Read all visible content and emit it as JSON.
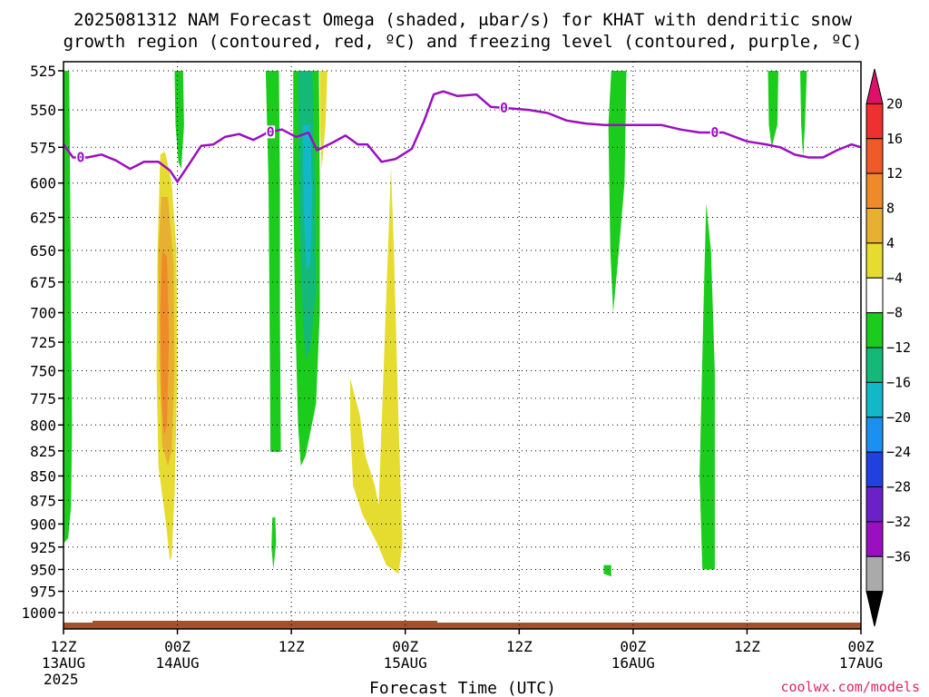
{
  "title": {
    "line1": "2025081312 NAM Forecast Omega (shaded, μbar/s) for KHAT with dendritic snow",
    "line2": "growth region (contoured, red, ºC) and freezing level (contoured, purple, ºC)"
  },
  "credit": "coolwx.com/models",
  "chart_data": {
    "type": "heatmap",
    "xlabel": "Forecast Time (UTC)",
    "ylabel": "",
    "x_unit": "hours after 2025-08-13 12Z",
    "xlim": [
      0,
      84
    ],
    "ylim": [
      1000,
      525
    ],
    "y_scale": "log-pressure",
    "grid": true,
    "y_ticks": [
      525,
      550,
      575,
      600,
      625,
      650,
      675,
      700,
      725,
      750,
      775,
      800,
      825,
      850,
      875,
      900,
      925,
      950,
      975,
      1000
    ],
    "x_ticks": [
      {
        "x": 0,
        "line1": "12Z",
        "line2": "13AUG",
        "line3": "2025"
      },
      {
        "x": 12,
        "line1": "00Z",
        "line2": "14AUG",
        "line3": ""
      },
      {
        "x": 24,
        "line1": "12Z",
        "line2": "",
        "line3": ""
      },
      {
        "x": 36,
        "line1": "00Z",
        "line2": "15AUG",
        "line3": ""
      },
      {
        "x": 48,
        "line1": "12Z",
        "line2": "",
        "line3": ""
      },
      {
        "x": 60,
        "line1": "00Z",
        "line2": "16AUG",
        "line3": ""
      },
      {
        "x": 72,
        "line1": "12Z",
        "line2": "",
        "line3": ""
      },
      {
        "x": 84,
        "line1": "00Z",
        "line2": "17AUG",
        "line3": ""
      }
    ],
    "colorbar": {
      "labels": [
        "20",
        "16",
        "12",
        "8",
        "4",
        "−4",
        "−8",
        "−12",
        "−16",
        "−20",
        "−24",
        "−28",
        "−32",
        "−36"
      ],
      "colors": [
        "#e0106a",
        "#ee3030",
        "#f05a28",
        "#ee8a2a",
        "#e8b030",
        "#e6dc30",
        "#ffffff",
        "#1ccc1c",
        "#14b878",
        "#12b8c8",
        "#1a90f0",
        "#2040e0",
        "#6a22c8",
        "#9a10c0",
        "#aaaaaa",
        "#000000"
      ]
    },
    "omega_regions": [
      {
        "color": "#1ccc1c",
        "polygon": [
          [
            0.0,
            525
          ],
          [
            0.6,
            525
          ],
          [
            0.7,
            600
          ],
          [
            0.8,
            700
          ],
          [
            0.9,
            800
          ],
          [
            0.8,
            880
          ],
          [
            0.5,
            915
          ],
          [
            0.1,
            920
          ],
          [
            0.0,
            900
          ]
        ]
      },
      {
        "color": "#1ccc1c",
        "polygon": [
          [
            11.7,
            525
          ],
          [
            12.6,
            525
          ],
          [
            12.7,
            560
          ],
          [
            12.4,
            590
          ],
          [
            12.1,
            585
          ],
          [
            11.8,
            560
          ]
        ]
      },
      {
        "color": "#e6dc30",
        "polygon": [
          [
            10.2,
            580
          ],
          [
            10.7,
            578
          ],
          [
            11.4,
            600
          ],
          [
            11.9,
            650
          ],
          [
            12.0,
            750
          ],
          [
            11.7,
            870
          ],
          [
            11.4,
            935
          ],
          [
            11.2,
            940
          ],
          [
            10.8,
            900
          ],
          [
            10.0,
            840
          ],
          [
            9.8,
            750
          ],
          [
            9.9,
            650
          ]
        ]
      },
      {
        "color": "#e8b030",
        "polygon": [
          [
            10.3,
            610
          ],
          [
            11.0,
            610
          ],
          [
            11.6,
            660
          ],
          [
            11.7,
            750
          ],
          [
            11.4,
            825
          ],
          [
            11.0,
            840
          ],
          [
            10.4,
            820
          ],
          [
            10.1,
            740
          ],
          [
            10.0,
            650
          ]
        ]
      },
      {
        "color": "#ee8a2a",
        "polygon": [
          [
            10.4,
            650
          ],
          [
            10.9,
            655
          ],
          [
            11.1,
            720
          ],
          [
            10.9,
            800
          ],
          [
            10.6,
            810
          ],
          [
            10.3,
            770
          ],
          [
            10.2,
            700
          ]
        ]
      },
      {
        "color": "#1ccc1c",
        "polygon": [
          [
            21.3,
            525
          ],
          [
            22.7,
            525
          ],
          [
            22.8,
            600
          ],
          [
            22.8,
            700
          ],
          [
            22.9,
            826
          ],
          [
            21.8,
            826
          ],
          [
            21.7,
            700
          ],
          [
            21.6,
            600
          ]
        ]
      },
      {
        "color": "#1ccc1c",
        "polygon": [
          [
            22.0,
            893
          ],
          [
            22.3,
            893
          ],
          [
            22.4,
            920
          ],
          [
            22.1,
            950
          ],
          [
            21.9,
            925
          ]
        ]
      },
      {
        "color": "#1ccc1c",
        "polygon": [
          [
            24.2,
            525
          ],
          [
            26.9,
            525
          ],
          [
            27.0,
            600
          ],
          [
            27.0,
            700
          ],
          [
            26.6,
            780
          ],
          [
            25.5,
            830
          ],
          [
            25.0,
            840
          ],
          [
            24.7,
            800
          ],
          [
            24.4,
            700
          ],
          [
            24.2,
            600
          ]
        ]
      },
      {
        "color": "#14b878",
        "polygon": [
          [
            24.7,
            525
          ],
          [
            26.2,
            525
          ],
          [
            26.5,
            600
          ],
          [
            26.6,
            680
          ],
          [
            26.0,
            730
          ],
          [
            25.5,
            740
          ],
          [
            25.1,
            690
          ],
          [
            24.8,
            620
          ]
        ]
      },
      {
        "color": "#12b8c8",
        "polygon": [
          [
            25.2,
            560
          ],
          [
            26.0,
            560
          ],
          [
            26.2,
            610
          ],
          [
            26.0,
            660
          ],
          [
            25.6,
            665
          ],
          [
            25.3,
            620
          ]
        ]
      },
      {
        "color": "#e6dc30",
        "polygon": [
          [
            27.0,
            525
          ],
          [
            27.8,
            525
          ],
          [
            27.6,
            560
          ],
          [
            27.2,
            590
          ],
          [
            27.0,
            560
          ]
        ]
      },
      {
        "color": "#e6dc30",
        "polygon": [
          [
            30.2,
            757
          ],
          [
            31.2,
            790
          ],
          [
            31.8,
            830
          ],
          [
            32.8,
            860
          ],
          [
            33.2,
            880
          ],
          [
            34.5,
            588
          ],
          [
            34.8,
            650
          ],
          [
            35.3,
            800
          ],
          [
            35.7,
            920
          ],
          [
            35.3,
            955
          ],
          [
            34.0,
            945
          ],
          [
            33.0,
            920
          ],
          [
            31.5,
            890
          ],
          [
            30.5,
            860
          ],
          [
            30.2,
            800
          ]
        ]
      },
      {
        "color": "#1ccc1c",
        "polygon": [
          [
            57.7,
            525
          ],
          [
            59.3,
            525
          ],
          [
            59.1,
            600
          ],
          [
            58.5,
            650
          ],
          [
            57.9,
            700
          ],
          [
            57.6,
            650
          ],
          [
            57.4,
            560
          ]
        ]
      },
      {
        "color": "#1ccc1c",
        "polygon": [
          [
            56.9,
            945
          ],
          [
            57.7,
            945
          ],
          [
            57.7,
            958
          ],
          [
            56.9,
            955
          ]
        ]
      },
      {
        "color": "#1ccc1c",
        "polygon": [
          [
            67.7,
            615
          ],
          [
            68.2,
            650
          ],
          [
            68.6,
            750
          ],
          [
            68.6,
            950
          ],
          [
            67.3,
            950
          ],
          [
            67.0,
            850
          ],
          [
            67.4,
            700
          ]
        ]
      },
      {
        "color": "#1ccc1c",
        "polygon": [
          [
            74.2,
            525
          ],
          [
            75.3,
            525
          ],
          [
            75.2,
            560
          ],
          [
            74.6,
            575
          ],
          [
            74.3,
            560
          ]
        ]
      },
      {
        "color": "#1ccc1c",
        "polygon": [
          [
            77.6,
            525
          ],
          [
            78.3,
            525
          ],
          [
            78.1,
            560
          ],
          [
            77.9,
            582
          ],
          [
            77.7,
            560
          ]
        ]
      }
    ],
    "freezing_level": {
      "label": "0",
      "label_x": [
        1.8,
        21.8,
        46.4,
        68.6
      ],
      "x": [
        0,
        1,
        2.5,
        4,
        5.5,
        7,
        8.5,
        10,
        11.2,
        12,
        13.2,
        14.5,
        15.8,
        17,
        18.5,
        20,
        21.5,
        23,
        24.5,
        25.8,
        26.7,
        28.3,
        29.7,
        31,
        32,
        33.5,
        35,
        36.7,
        38,
        39,
        40,
        41.5,
        43.5,
        45,
        47,
        49,
        51,
        53,
        55,
        57,
        59,
        61,
        63,
        65,
        67,
        69.5,
        72,
        74,
        75.5,
        77,
        78.5,
        80,
        81.5,
        83,
        84
      ],
      "y": [
        573,
        582,
        582,
        580,
        584,
        590,
        585,
        585,
        591,
        599,
        587,
        574,
        573,
        568,
        566,
        570,
        565,
        563,
        568,
        565,
        577,
        572,
        567,
        573,
        573,
        585,
        583,
        576,
        557,
        540,
        538,
        541,
        540,
        548,
        549,
        550,
        552,
        557,
        559,
        560,
        560,
        560,
        560,
        563,
        565,
        565,
        571,
        573,
        575,
        580,
        582,
        582,
        577,
        573,
        575
      ]
    }
  }
}
